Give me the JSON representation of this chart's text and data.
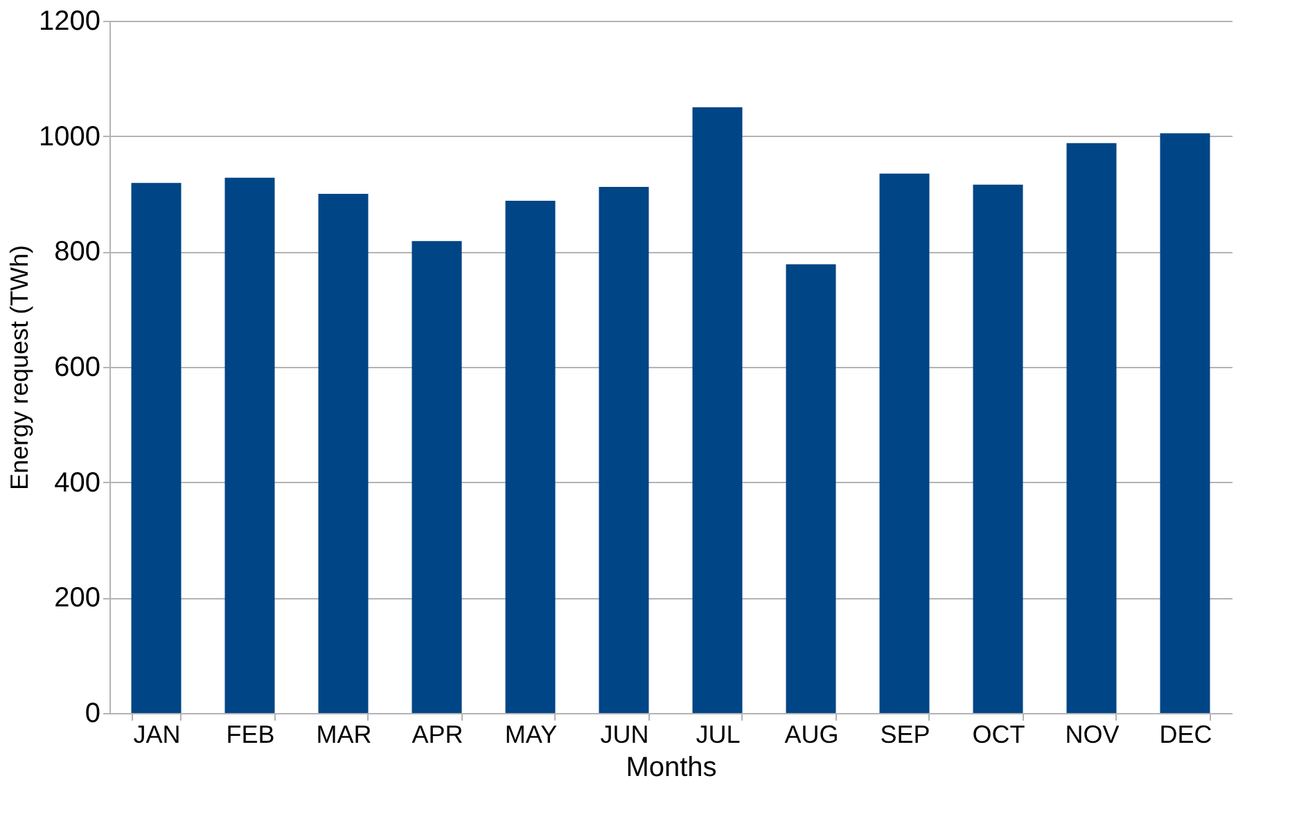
{
  "chart_data": {
    "type": "bar",
    "xlabel": "Months",
    "ylabel": "Energy request (TWh)",
    "categories": [
      "JAN",
      "FEB",
      "MAR",
      "APR",
      "MAY",
      "JUN",
      "JUL",
      "AUG",
      "SEP",
      "OCT",
      "NOV",
      "DEC"
    ],
    "values": [
      919,
      928,
      900,
      818,
      888,
      912,
      1050,
      778,
      935,
      916,
      988,
      1005
    ],
    "color": "#004586",
    "ylim": [
      0,
      1200
    ],
    "yticks": [
      0,
      200,
      400,
      600,
      800,
      1000,
      1200
    ],
    "grid": "y"
  }
}
